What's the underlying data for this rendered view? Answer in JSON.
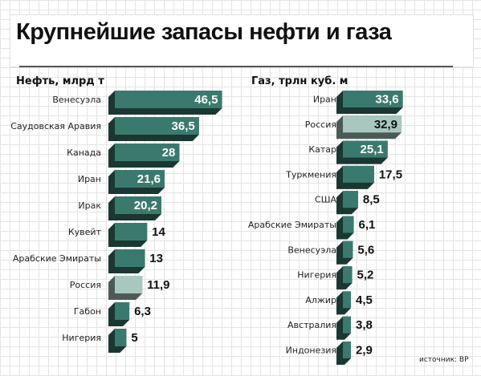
{
  "title": "Крупнейшие запасы нефти и газа",
  "source": "источник: BP",
  "colors": {
    "bar": "#3a7a6e",
    "bar_highlight": "#a8c8bf",
    "label": "#222222"
  },
  "chart_data": [
    {
      "type": "bar",
      "orientation": "horizontal",
      "title": "Нефть, млрд т",
      "categories": [
        "Венесуэла",
        "Саудовская Аравия",
        "Канада",
        "Иран",
        "Ирак",
        "Кувейт",
        "Арабские Эмираты",
        "Россия",
        "Габон",
        "Нигерия"
      ],
      "values": [
        46.5,
        36.5,
        28,
        21.6,
        20.2,
        14,
        13,
        11.9,
        6.3,
        5
      ],
      "value_labels": [
        "46,5",
        "36,5",
        "28",
        "21,6",
        "20,2",
        "14",
        "13",
        "11,9",
        "6,3",
        "5"
      ],
      "highlight": "Россия"
    },
    {
      "type": "bar",
      "orientation": "horizontal",
      "title": "Газ, трлн куб. м",
      "categories": [
        "Иран",
        "Россия",
        "Катар",
        "Туркмения",
        "США",
        "Арабские Эмираты",
        "Венесуэла",
        "Нигерия",
        "Алжир",
        "Австралия",
        "Индонезия"
      ],
      "values": [
        33.6,
        32.9,
        25.1,
        17.5,
        8.5,
        6.1,
        5.6,
        5.2,
        4.5,
        3.8,
        2.9
      ],
      "value_labels": [
        "33,6",
        "32,9",
        "25,1",
        "17,5",
        "8,5",
        "6,1",
        "5,6",
        "5,2",
        "4,5",
        "3,8",
        "2,9"
      ],
      "highlight": "Россия"
    }
  ]
}
